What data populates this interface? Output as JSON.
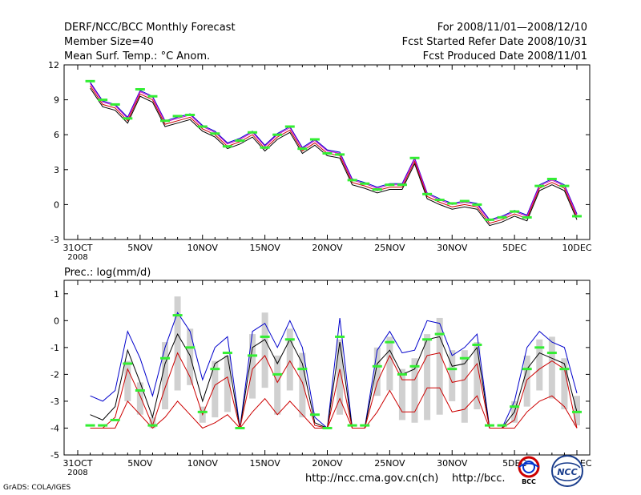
{
  "header": {
    "title": "DERF/NCC/BCC Monthly Forecast",
    "member_size": "Member Size=40",
    "variable": "Mean Surf. Temp.: °C Anom.",
    "period": "For 2008/11/01—2008/12/10",
    "start_date": "Fcst Started Refer Date 2008/10/31",
    "produced_date": "Fcst Produced Date 2008/11/01"
  },
  "footer": {
    "grads": "GrADS: COLA/IGES",
    "url1": "http://ncc.cma.gov.cn(ch)",
    "url2": "http://bcc.",
    "logo1_text": "BCC",
    "logo2_text": "NCC"
  },
  "colors": {
    "green": "#33ee33",
    "gray": "#d0d0d0",
    "blue": "#0000cc",
    "red": "#cc0000",
    "magenta": "#cc00cc",
    "black": "#000000"
  },
  "chart_data": [
    {
      "type": "line",
      "title": "Mean Surf. Temp.: °C Anom.",
      "xlabel": "",
      "ylabel": "",
      "x": [
        0,
        1,
        2,
        3,
        4,
        5,
        6,
        7,
        8,
        9,
        10,
        11,
        12,
        13,
        14,
        15,
        16,
        17,
        18,
        19,
        20,
        21,
        22,
        23,
        24,
        25,
        26,
        27,
        28,
        29,
        30,
        31,
        32,
        33,
        34,
        35,
        36,
        37,
        38,
        39,
        40
      ],
      "xlim": [
        0,
        40
      ],
      "ylim": [
        -3,
        12
      ],
      "yticks": [
        -3,
        0,
        3,
        6,
        9,
        12
      ],
      "xtick_labels": [
        {
          "x": 0,
          "label": "31OCT",
          "sub": "2008"
        },
        {
          "x": 5,
          "label": "5NOV"
        },
        {
          "x": 10,
          "label": "10NOV"
        },
        {
          "x": 15,
          "label": "15NOV"
        },
        {
          "x": 20,
          "label": "20NOV"
        },
        {
          "x": 25,
          "label": "25NOV"
        },
        {
          "x": 30,
          "label": "30NOV"
        },
        {
          "x": 35,
          "label": "5DEC"
        },
        {
          "x": 40,
          "label": "10DEC"
        }
      ],
      "series": [
        {
          "name": "max",
          "color": "#0000cc",
          "values": [
            null,
            10.5,
            8.9,
            8.6,
            7.5,
            9.8,
            9.3,
            7.2,
            7.5,
            7.8,
            6.8,
            6.3,
            5.3,
            5.7,
            6.3,
            5.1,
            6.1,
            6.7,
            4.9,
            5.6,
            4.7,
            4.5,
            2.2,
            1.9,
            1.5,
            1.8,
            1.8,
            4.0,
            1.0,
            0.5,
            0.1,
            0.3,
            0.1,
            -1.3,
            -1.0,
            -0.5,
            -0.9,
            1.7,
            2.2,
            1.7,
            -0.8
          ]
        },
        {
          "name": "upper",
          "color": "#cc00cc",
          "values": [
            null,
            10.4,
            8.8,
            8.5,
            7.4,
            9.7,
            9.2,
            7.1,
            7.4,
            7.7,
            6.7,
            6.2,
            5.2,
            5.6,
            6.2,
            5.0,
            6.0,
            6.6,
            4.8,
            5.5,
            4.6,
            4.4,
            2.1,
            1.8,
            1.4,
            1.7,
            1.7,
            3.9,
            0.9,
            0.4,
            0.0,
            0.2,
            0.0,
            -1.4,
            -1.1,
            -0.6,
            -1.0,
            1.6,
            2.1,
            1.6,
            -0.9
          ]
        },
        {
          "name": "mean",
          "color": "#cc0000",
          "values": [
            null,
            10.2,
            8.6,
            8.3,
            7.2,
            9.5,
            9.0,
            6.9,
            7.2,
            7.5,
            6.5,
            6.0,
            5.0,
            5.4,
            6.0,
            4.8,
            5.8,
            6.4,
            4.6,
            5.3,
            4.4,
            4.2,
            1.9,
            1.6,
            1.2,
            1.5,
            1.5,
            3.7,
            0.7,
            0.2,
            -0.2,
            0.0,
            -0.2,
            -1.6,
            -1.3,
            -0.8,
            -1.2,
            1.4,
            1.9,
            1.4,
            -1.1
          ]
        },
        {
          "name": "min",
          "color": "#000000",
          "values": [
            null,
            10.0,
            8.4,
            8.1,
            7.0,
            9.3,
            8.8,
            6.7,
            7.0,
            7.3,
            6.3,
            5.8,
            4.8,
            5.2,
            5.8,
            4.6,
            5.6,
            6.2,
            4.4,
            5.1,
            4.2,
            4.0,
            1.7,
            1.4,
            1.0,
            1.3,
            1.3,
            3.5,
            0.5,
            0.0,
            -0.4,
            -0.2,
            -0.4,
            -1.8,
            -1.5,
            -1.0,
            -1.4,
            1.2,
            1.7,
            1.2,
            -1.3
          ]
        }
      ],
      "markers": {
        "name": "member markers",
        "color": "#33ee33",
        "values": [
          null,
          10.6,
          9.0,
          8.6,
          7.4,
          9.9,
          9.3,
          7.2,
          7.6,
          7.7,
          6.7,
          6.1,
          5.0,
          5.5,
          6.2,
          4.9,
          6.0,
          6.7,
          4.8,
          5.6,
          4.4,
          4.3,
          2.1,
          1.8,
          1.3,
          1.7,
          1.7,
          4.0,
          0.9,
          0.4,
          0.1,
          0.3,
          0.0,
          -1.3,
          -1.1,
          -0.6,
          -1.1,
          1.6,
          2.2,
          1.6,
          -1.0
        ]
      }
    },
    {
      "type": "line",
      "title": "Prec.: log(mm/d)",
      "xlabel": "",
      "ylabel": "",
      "x": [
        0,
        1,
        2,
        3,
        4,
        5,
        6,
        7,
        8,
        9,
        10,
        11,
        12,
        13,
        14,
        15,
        16,
        17,
        18,
        19,
        20,
        21,
        22,
        23,
        24,
        25,
        26,
        27,
        28,
        29,
        30,
        31,
        32,
        33,
        34,
        35,
        36,
        37,
        38,
        39,
        40
      ],
      "xlim": [
        0,
        40
      ],
      "ylim": [
        -5,
        1.5
      ],
      "yticks": [
        -5,
        -4,
        -3,
        -2,
        -1,
        0,
        1
      ],
      "xtick_labels": [
        {
          "x": 0,
          "label": "31OCT",
          "sub": "2008"
        },
        {
          "x": 5,
          "label": "5NOV"
        },
        {
          "x": 10,
          "label": "10NOV"
        },
        {
          "x": 15,
          "label": "15NOV"
        },
        {
          "x": 20,
          "label": "20NOV"
        },
        {
          "x": 25,
          "label": "25NOV"
        },
        {
          "x": 30,
          "label": "30NOV"
        },
        {
          "x": 35,
          "label": "5DEC"
        },
        {
          "x": 40,
          "label": "10DEC"
        }
      ],
      "bars": {
        "name": "ensemble spread",
        "color": "#d0d0d0",
        "base": -4,
        "lows": [
          null,
          -4,
          -4,
          -4,
          -3.0,
          -3.5,
          -4,
          -3.3,
          -2.6,
          -2.4,
          -3.8,
          -3.6,
          -3.4,
          -4,
          -2.9,
          -2.5,
          -3.5,
          -2.6,
          -3.6,
          -4,
          -4,
          -3.5,
          -4,
          -4,
          -2.8,
          -2.6,
          -3.7,
          -3.8,
          -3.7,
          -3.5,
          -3.0,
          -3.8,
          -3.3,
          -4,
          -4,
          -3.8,
          -3.2,
          -2.6,
          -2.9,
          -3.3,
          -3.9
        ],
        "highs": [
          null,
          -4,
          -4,
          -4,
          -1.5,
          -2.3,
          -3.6,
          -0.8,
          0.9,
          -0.3,
          -3.2,
          -1.5,
          -1.3,
          -4,
          -0.5,
          0.3,
          -1.3,
          -0.3,
          -1.2,
          -4,
          -4,
          -0.7,
          -4,
          -4,
          -1.0,
          -0.6,
          -1.8,
          -1.4,
          -0.5,
          0.1,
          -1.1,
          -1.1,
          -0.8,
          -4,
          -4,
          -3.0,
          -1.3,
          -0.7,
          -0.6,
          -1.4,
          -2.8
        ]
      },
      "series": [
        {
          "name": "max",
          "color": "#0000cc",
          "values": [
            null,
            -2.8,
            -3.0,
            -2.6,
            -0.4,
            -1.4,
            -2.8,
            -1.0,
            0.3,
            -0.4,
            -2.2,
            -1.0,
            -0.6,
            -4.0,
            -0.4,
            -0.1,
            -1.0,
            0.0,
            -1.0,
            -3.6,
            -4.0,
            0.1,
            -4.0,
            -4.0,
            -1.1,
            -0.4,
            -1.2,
            -1.1,
            0.0,
            -0.1,
            -1.3,
            -1.0,
            -0.5,
            -4.0,
            -4.0,
            -3.0,
            -1.0,
            -0.4,
            -0.8,
            -1.0,
            -2.7
          ]
        },
        {
          "name": "mean",
          "color": "#000000",
          "values": [
            null,
            -3.5,
            -3.7,
            -3.2,
            -1.1,
            -2.3,
            -3.6,
            -1.6,
            -0.5,
            -1.3,
            -3.0,
            -1.6,
            -1.3,
            -4.0,
            -1.0,
            -0.7,
            -1.6,
            -0.7,
            -1.6,
            -3.8,
            -4.0,
            -0.8,
            -4.0,
            -4.0,
            -1.6,
            -1.1,
            -2.0,
            -1.8,
            -0.7,
            -0.6,
            -1.7,
            -1.6,
            -1.0,
            -4.0,
            -4.0,
            -3.4,
            -1.8,
            -1.2,
            -1.4,
            -1.6,
            -3.4
          ]
        },
        {
          "name": "upper",
          "color": "#cc0000",
          "values": [
            null,
            -4.0,
            -4.0,
            -3.6,
            -1.8,
            -2.8,
            -3.9,
            -2.5,
            -1.2,
            -2.1,
            -3.5,
            -2.4,
            -2.1,
            -4.0,
            -1.8,
            -1.3,
            -2.3,
            -1.5,
            -2.3,
            -3.9,
            -4.0,
            -1.8,
            -4.0,
            -4.0,
            -2.3,
            -1.3,
            -2.2,
            -2.2,
            -1.3,
            -1.2,
            -2.3,
            -2.2,
            -1.6,
            -4.0,
            -4.0,
            -3.7,
            -2.2,
            -1.8,
            -1.5,
            -1.8,
            -4.0
          ]
        },
        {
          "name": "lower",
          "color": "#cc0000",
          "values": [
            null,
            -4.0,
            -4.0,
            -4.0,
            -3.0,
            -3.5,
            -4.0,
            -3.6,
            -3.0,
            -3.5,
            -4.0,
            -3.8,
            -3.5,
            -4.0,
            -3.4,
            -2.9,
            -3.5,
            -3.0,
            -3.5,
            -4.0,
            -4.0,
            -2.9,
            -4.0,
            -4.0,
            -3.4,
            -2.6,
            -3.4,
            -3.4,
            -2.5,
            -2.5,
            -3.4,
            -3.3,
            -2.8,
            -4.0,
            -4.0,
            -4.0,
            -3.4,
            -3.0,
            -2.8,
            -3.2,
            -4.0
          ]
        }
      ],
      "markers": {
        "name": "member markers",
        "color": "#33ee33",
        "values": [
          null,
          -3.9,
          -3.9,
          -3.7,
          -1.6,
          -2.6,
          -3.9,
          -1.4,
          0.2,
          -1.0,
          -3.4,
          -1.8,
          -1.2,
          -4.0,
          -1.3,
          -0.6,
          -2.0,
          -0.7,
          -1.8,
          -3.5,
          -4.0,
          -0.6,
          -3.9,
          -3.9,
          -1.7,
          -0.8,
          -2.0,
          -1.7,
          -0.7,
          -0.5,
          -1.8,
          -1.4,
          -0.9,
          -3.9,
          -3.9,
          -3.2,
          -1.8,
          -1.0,
          -1.2,
          -1.8,
          -3.4
        ]
      }
    }
  ]
}
